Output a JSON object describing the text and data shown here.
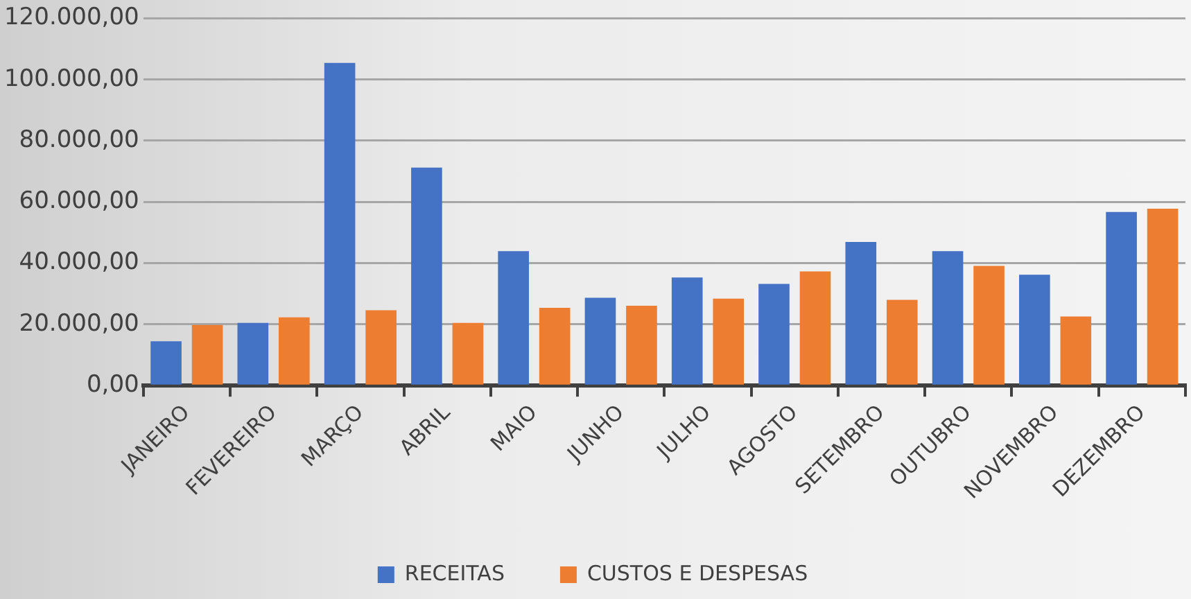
{
  "chart_data": {
    "type": "bar",
    "categories": [
      "JANEIRO",
      "FEVEREIRO",
      "MARÇO",
      "ABRIL",
      "MAIO",
      "JUNHO",
      "JULHO",
      "AGOSTO",
      "SETEMBRO",
      "OUTUBRO",
      "NOVEMBRO",
      "DEZEMBRO"
    ],
    "series": [
      {
        "name": "RECEITAS",
        "color": "#4472c4",
        "values": [
          14500,
          20500,
          105400,
          71200,
          43900,
          28700,
          35300,
          33200,
          46900,
          43900,
          36200,
          56700
        ]
      },
      {
        "name": "CUSTOS E DESPESAS",
        "color": "#ed7d31",
        "values": [
          19800,
          22300,
          24600,
          20500,
          25400,
          26100,
          28400,
          37300,
          28000,
          39100,
          22600,
          57800
        ]
      }
    ],
    "ylim": [
      0,
      120000
    ],
    "yticks": [
      {
        "value": 0,
        "label": "0,00"
      },
      {
        "value": 20000,
        "label": "20.000,00"
      },
      {
        "value": 40000,
        "label": "40.000,00"
      },
      {
        "value": 60000,
        "label": "60.000,00"
      },
      {
        "value": 80000,
        "label": "80.000,00"
      },
      {
        "value": 100000,
        "label": "100.000,00"
      },
      {
        "value": 120000,
        "label": "120.000,00"
      }
    ],
    "grid": "y",
    "legend": "bottom"
  }
}
